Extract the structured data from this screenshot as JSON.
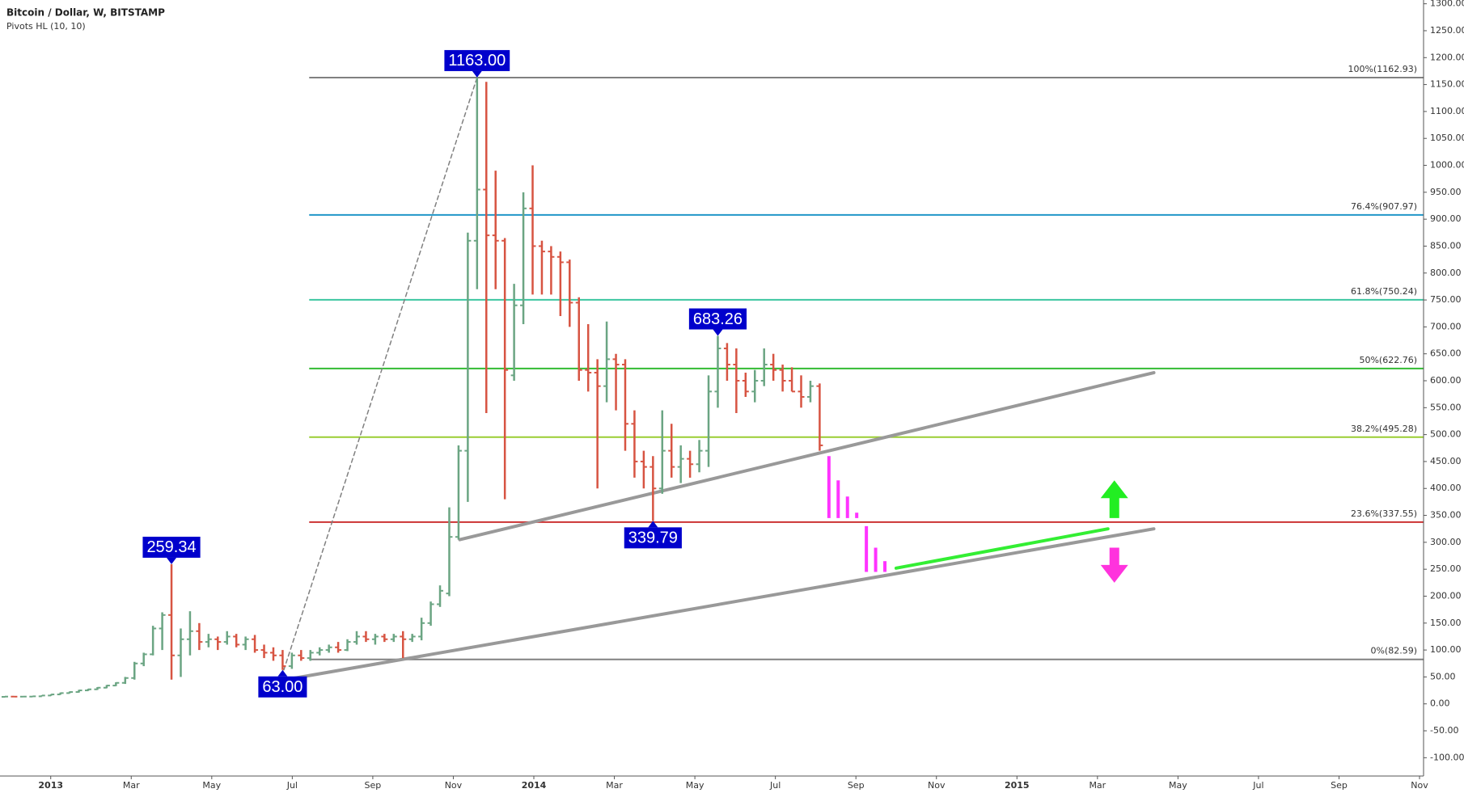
{
  "chart_data": {
    "type": "ohlc",
    "title": "Bitcoin / Dollar, W, BITSTAMP",
    "subtitle": "Pivots HL (10, 10)",
    "up_color": "#6ba583",
    "down_color": "#d75442",
    "xlim": [
      -1.26,
      34.1
    ],
    "ylim": [
      -134,
      1307
    ],
    "xticks": [
      {
        "value": 0,
        "label": "2013"
      },
      {
        "value": 2,
        "label": "Mar"
      },
      {
        "value": 4,
        "label": "May"
      },
      {
        "value": 6,
        "label": "Jul"
      },
      {
        "value": 8,
        "label": "Sep"
      },
      {
        "value": 10,
        "label": "Nov"
      },
      {
        "value": 12,
        "label": "2014"
      },
      {
        "value": 14,
        "label": "Mar"
      },
      {
        "value": 16,
        "label": "May"
      },
      {
        "value": 18,
        "label": "Jul"
      },
      {
        "value": 20,
        "label": "Sep"
      },
      {
        "value": 22,
        "label": "Nov"
      },
      {
        "value": 24,
        "label": "2015"
      },
      {
        "value": 26,
        "label": "Mar"
      },
      {
        "value": 28,
        "label": "May"
      },
      {
        "value": 30,
        "label": "Jul"
      },
      {
        "value": 32,
        "label": "Sep"
      },
      {
        "value": 34,
        "label": "Nov"
      }
    ],
    "yticks": [
      {
        "value": 1300,
        "label": "1300.00"
      },
      {
        "value": 1250,
        "label": "1250.00"
      },
      {
        "value": 1200,
        "label": "1200.00"
      },
      {
        "value": 1150,
        "label": "1150.00"
      },
      {
        "value": 1100,
        "label": "1100.00"
      },
      {
        "value": 1050,
        "label": "1050.00"
      },
      {
        "value": 1000,
        "label": "1000.00"
      },
      {
        "value": 950,
        "label": "950.00"
      },
      {
        "value": 900,
        "label": "900.00"
      },
      {
        "value": 850,
        "label": "850.00"
      },
      {
        "value": 800,
        "label": "800.00"
      },
      {
        "value": 750,
        "label": "750.00"
      },
      {
        "value": 700,
        "label": "700.00"
      },
      {
        "value": 650,
        "label": "650.00"
      },
      {
        "value": 600,
        "label": "600.00"
      },
      {
        "value": 550,
        "label": "550.00"
      },
      {
        "value": 500,
        "label": "500.00"
      },
      {
        "value": 450,
        "label": "450.00"
      },
      {
        "value": 400,
        "label": "400.00"
      },
      {
        "value": 350,
        "label": "350.00"
      },
      {
        "value": 300,
        "label": "300.00"
      },
      {
        "value": 250,
        "label": "250.00"
      },
      {
        "value": 200,
        "label": "200.00"
      },
      {
        "value": 150,
        "label": "150.00"
      },
      {
        "value": 100,
        "label": "100.00"
      },
      {
        "value": 50,
        "label": "50.00"
      },
      {
        "value": 0,
        "label": "0.00"
      },
      {
        "value": -50,
        "label": "-50.00"
      },
      {
        "value": -100,
        "label": "-100.00"
      }
    ],
    "x": [
      -1.14,
      -0.91,
      -0.68,
      -0.45,
      -0.22,
      0.01,
      0.24,
      0.47,
      0.7,
      0.93,
      1.16,
      1.39,
      1.62,
      1.85,
      2.08,
      2.31,
      2.54,
      2.77,
      3.0,
      3.23,
      3.46,
      3.69,
      3.92,
      4.15,
      4.38,
      4.61,
      4.84,
      5.07,
      5.3,
      5.53,
      5.76,
      5.99,
      6.22,
      6.45,
      6.68,
      6.91,
      7.14,
      7.37,
      7.6,
      7.83,
      8.06,
      8.29,
      8.52,
      8.75,
      8.98,
      9.21,
      9.44,
      9.67,
      9.9,
      10.13,
      10.36,
      10.59,
      10.82,
      11.05,
      11.28,
      11.51,
      11.74,
      11.97,
      12.2,
      12.43,
      12.66,
      12.89,
      13.12,
      13.35,
      13.58,
      13.81,
      14.04,
      14.27,
      14.5,
      14.73,
      14.96,
      15.19,
      15.42,
      15.65,
      15.88,
      16.11,
      16.34,
      16.57,
      16.8,
      17.03,
      17.26,
      17.49,
      17.72,
      17.95,
      18.18,
      18.41,
      18.64,
      18.87,
      19.1
    ],
    "open": [
      13,
      13.5,
      13.4,
      13.5,
      14,
      15.5,
      17.5,
      20,
      22,
      25,
      27,
      30,
      34,
      39,
      48,
      75,
      92,
      140,
      165,
      90,
      120,
      135,
      115,
      120,
      115,
      125,
      110,
      120,
      100,
      95,
      90,
      70,
      90,
      85,
      95,
      100,
      105,
      100,
      115,
      125,
      120,
      125,
      120,
      125,
      120,
      125,
      150,
      185,
      205,
      310,
      470,
      860,
      955,
      870,
      860,
      610,
      740,
      920,
      850,
      840,
      830,
      820,
      745,
      620,
      615,
      590,
      640,
      630,
      520,
      450,
      440,
      400,
      470,
      440,
      455,
      445,
      470,
      580,
      660,
      630,
      600,
      580,
      600,
      630,
      620,
      600,
      580,
      570,
      590
    ],
    "high": [
      14,
      14,
      14,
      14.5,
      16,
      18,
      21,
      23,
      26,
      28,
      31,
      35,
      40,
      50,
      78,
      95,
      145,
      170,
      259.34,
      140,
      172,
      150,
      130,
      125,
      135,
      130,
      125,
      128,
      110,
      105,
      100,
      95,
      100,
      100,
      105,
      110,
      115,
      120,
      135,
      135,
      130,
      130,
      130,
      135,
      130,
      160,
      190,
      220,
      365,
      480,
      875,
      1163,
      1155,
      990,
      865,
      780,
      950,
      1000,
      860,
      850,
      840,
      825,
      755,
      705,
      640,
      710,
      650,
      640,
      545,
      470,
      460,
      545,
      520,
      480,
      470,
      490,
      610,
      683.26,
      670,
      660,
      615,
      620,
      660,
      650,
      630,
      625,
      610,
      600,
      595
    ],
    "low": [
      12,
      13,
      13,
      13,
      14,
      15,
      17,
      19.5,
      21,
      24,
      26,
      29,
      33,
      37,
      45,
      70,
      90,
      100,
      45,
      50,
      90,
      100,
      105,
      100,
      110,
      105,
      100,
      95,
      85,
      80,
      63,
      65,
      80,
      80,
      90,
      95,
      95,
      98,
      110,
      115,
      110,
      115,
      115,
      85,
      115,
      118,
      145,
      180,
      200,
      305,
      375,
      770,
      540,
      770,
      380,
      600,
      705,
      760,
      760,
      760,
      720,
      700,
      600,
      580,
      400,
      560,
      545,
      470,
      420,
      400,
      339.79,
      390,
      420,
      410,
      420,
      430,
      440,
      550,
      600,
      540,
      570,
      560,
      590,
      600,
      580,
      580,
      550,
      560,
      470
    ],
    "close": [
      13.5,
      13.4,
      13.5,
      14,
      15.5,
      17.5,
      20,
      22,
      25,
      27,
      30,
      34,
      39,
      48,
      75,
      92,
      140,
      165,
      90,
      120,
      135,
      115,
      120,
      115,
      125,
      110,
      120,
      100,
      95,
      90,
      70,
      90,
      85,
      95,
      100,
      105,
      100,
      115,
      125,
      120,
      125,
      120,
      125,
      120,
      125,
      150,
      185,
      210,
      310,
      470,
      860,
      955,
      870,
      860,
      620,
      740,
      920,
      850,
      840,
      830,
      820,
      745,
      620,
      615,
      590,
      640,
      630,
      520,
      450,
      440,
      400,
      470,
      440,
      455,
      445,
      470,
      580,
      660,
      630,
      600,
      580,
      600,
      630,
      620,
      600,
      580,
      570,
      590,
      480
    ],
    "pivots": [
      {
        "x": 3.0,
        "value": 259.34,
        "label": "259.34",
        "position": "above"
      },
      {
        "x": 5.76,
        "value": 63,
        "label": "63.00",
        "position": "below"
      },
      {
        "x": 10.59,
        "value": 1163,
        "label": "1163.00",
        "position": "above"
      },
      {
        "x": 14.96,
        "value": 339.79,
        "label": "339.79",
        "position": "below"
      },
      {
        "x": 16.57,
        "value": 683.26,
        "label": "683.26",
        "position": "above"
      }
    ],
    "pivot_color": "#0000cc",
    "fib_start": 6.42,
    "fib_levels": [
      {
        "label": "100%(1162.93)",
        "value": 1162.93,
        "color": "#808080"
      },
      {
        "label": "76.4%(907.97)",
        "value": 907.97,
        "color": "#2196c8"
      },
      {
        "label": "61.8%(750.24)",
        "value": 750.24,
        "color": "#3cc6a0"
      },
      {
        "label": "50%(622.76)",
        "value": 622.76,
        "color": "#33bb33"
      },
      {
        "label": "38.2%(495.28)",
        "value": 495.28,
        "color": "#9acd32"
      },
      {
        "label": "23.6%(337.55)",
        "value": 337.55,
        "color": "#cc3333"
      },
      {
        "label": "0%(82.59)",
        "value": 82.59,
        "color": "#808080"
      }
    ],
    "trend_lines": [
      {
        "x": [
          5.79,
          10.59
        ],
        "y": [
          63,
          1163
        ],
        "color": "#808080",
        "dashed": true,
        "width": 1.5
      },
      {
        "x": [
          10.16,
          27.4
        ],
        "y": [
          305,
          615
        ],
        "color": "#999999",
        "dashed": false,
        "width": 4
      },
      {
        "x": [
          5.84,
          27.4
        ],
        "y": [
          45,
          325
        ],
        "color": "#999999",
        "dashed": false,
        "width": 4
      },
      {
        "x": [
          21.0,
          26.26
        ],
        "y": [
          252,
          325
        ],
        "color": "#33ee33",
        "dashed": false,
        "width": 4
      }
    ],
    "projection_color": "#ff33ff",
    "projection_bars": [
      {
        "x": 19.33,
        "high": 460,
        "low": 345
      },
      {
        "x": 19.56,
        "high": 415,
        "low": 345
      },
      {
        "x": 19.79,
        "high": 385,
        "low": 345
      },
      {
        "x": 20.02,
        "high": 355,
        "low": 345
      },
      {
        "x": 20.26,
        "high": 330,
        "low": 245
      },
      {
        "x": 20.49,
        "high": 290,
        "low": 245
      },
      {
        "x": 20.72,
        "high": 265,
        "low": 245
      }
    ],
    "arrows": [
      {
        "x": 26.42,
        "from": 345,
        "to": 415,
        "color": "#22ee22"
      },
      {
        "x": 26.42,
        "from": 290,
        "to": 225,
        "color": "#ff33dd"
      }
    ]
  }
}
